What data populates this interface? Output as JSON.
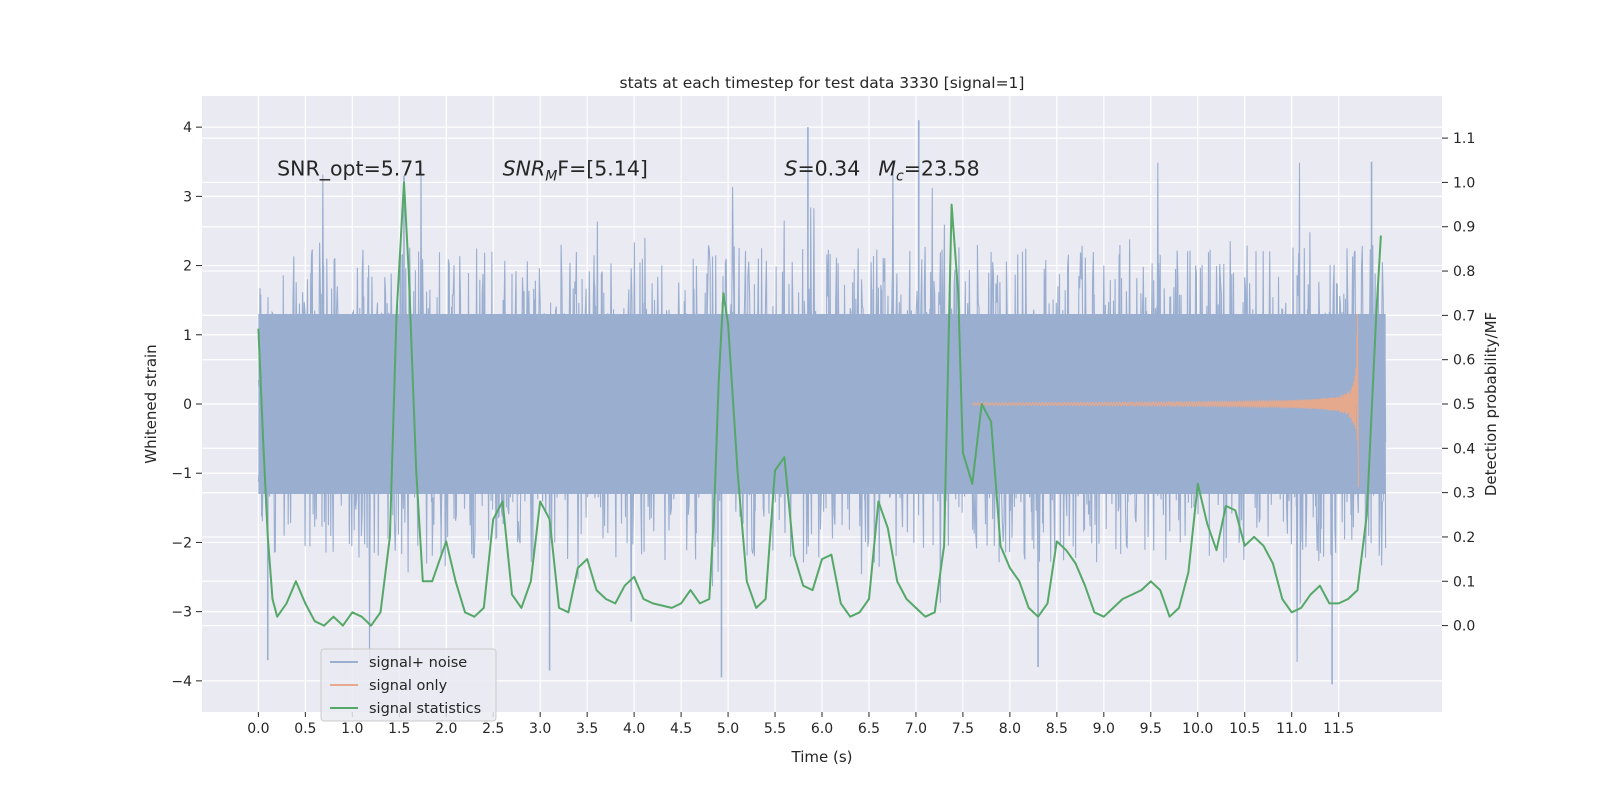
{
  "chart_data": {
    "type": "line",
    "title": "stats at each timestep for test data 3330 [signal=1]",
    "xlabel": "Time (s)",
    "ylabel": "Whitened strain",
    "y2label": "Detection probability/MF",
    "xlim": [
      -0.6,
      12.6
    ],
    "ylim": [
      -4.45,
      4.45
    ],
    "y2lim": [
      -0.195,
      1.195
    ],
    "x_ticks": [
      0.0,
      0.5,
      1.0,
      1.5,
      2.0,
      2.5,
      3.0,
      3.5,
      4.0,
      4.5,
      5.0,
      5.5,
      6.0,
      6.5,
      7.0,
      7.5,
      8.0,
      8.5,
      9.0,
      9.5,
      10.0,
      10.5,
      11.0,
      11.5
    ],
    "x_tick_labels": [
      "0.0",
      "0.5",
      "1.0",
      "1.5",
      "2.0",
      "2.5",
      "3.0",
      "3.5",
      "4.0",
      "4.5",
      "5.0",
      "5.5",
      "6.0",
      "6.5",
      "7.0",
      "7.5",
      "8.0",
      "8.5",
      "9.0",
      "9.5",
      "10.0",
      "10.5",
      "11.0",
      "11.5"
    ],
    "y_ticks": [
      -4,
      -3,
      -2,
      -1,
      0,
      1,
      2,
      3,
      4
    ],
    "y_tick_labels": [
      "−4",
      "−3",
      "−2",
      "−1",
      "0",
      "1",
      "2",
      "3",
      "4"
    ],
    "y2_ticks": [
      0.0,
      0.1,
      0.2,
      0.3,
      0.4,
      0.5,
      0.6,
      0.7,
      0.8,
      0.9,
      1.0,
      1.1
    ],
    "y2_tick_labels": [
      "0.0",
      "0.1",
      "0.2",
      "0.3",
      "0.4",
      "0.5",
      "0.6",
      "0.7",
      "0.8",
      "0.9",
      "1.0",
      "1.1"
    ],
    "grid": true,
    "legend_position": "lower-left",
    "annotations": [
      {
        "id": "snr_opt",
        "text": "SNR_opt=5.71",
        "x": 0.2,
        "y": 3.3
      },
      {
        "id": "snr_mf",
        "base": "SNR",
        "sub": "M",
        "rest": "F=[5.14]",
        "x": 2.6,
        "y": 3.3
      },
      {
        "id": "s_val",
        "base": "S",
        "rest": "=0.34",
        "x": 5.6,
        "y": 3.3
      },
      {
        "id": "mc_val",
        "base": "M",
        "sub": "c",
        "rest": "=23.58",
        "x": 6.6,
        "y": 3.3
      }
    ],
    "series": [
      {
        "name": "signal+ noise",
        "color": "#9aaed0",
        "axis": "left",
        "t_range": [
          0.0,
          12.0
        ],
        "envelope_min": -2.4,
        "envelope_max": 2.5,
        "extreme_min": -4.05,
        "extreme_max": 4.1,
        "peak_points": [
          [
            1.55,
            3.3
          ],
          [
            5.85,
            4.0
          ],
          [
            7.03,
            4.1
          ],
          [
            11.43,
            -4.05
          ],
          [
            4.93,
            -3.95
          ],
          [
            3.1,
            -3.85
          ],
          [
            0.1,
            -3.7
          ],
          [
            11.85,
            3.5
          ],
          [
            8.3,
            -3.8
          ]
        ]
      },
      {
        "name": "signal only",
        "color": "#e5a98d",
        "axis": "left",
        "t_start": 7.6,
        "t_merger": 11.7,
        "peak_amplitude": 1.3,
        "trough_amplitude": -1.2
      },
      {
        "name": "signal statistics",
        "color": "#55a868",
        "axis": "right",
        "x": [
          0.0,
          0.05,
          0.1,
          0.15,
          0.2,
          0.3,
          0.4,
          0.5,
          0.6,
          0.7,
          0.8,
          0.9,
          1.0,
          1.1,
          1.2,
          1.3,
          1.4,
          1.47,
          1.55,
          1.6,
          1.68,
          1.75,
          1.85,
          1.95,
          2.0,
          2.1,
          2.2,
          2.3,
          2.4,
          2.5,
          2.6,
          2.7,
          2.8,
          2.9,
          3.0,
          3.1,
          3.2,
          3.3,
          3.4,
          3.5,
          3.6,
          3.7,
          3.8,
          3.9,
          4.0,
          4.1,
          4.2,
          4.4,
          4.5,
          4.6,
          4.7,
          4.8,
          4.85,
          4.9,
          4.95,
          5.0,
          5.1,
          5.2,
          5.3,
          5.4,
          5.5,
          5.6,
          5.7,
          5.8,
          5.9,
          6.0,
          6.1,
          6.2,
          6.3,
          6.4,
          6.5,
          6.6,
          6.7,
          6.8,
          6.9,
          7.0,
          7.1,
          7.2,
          7.3,
          7.38,
          7.45,
          7.5,
          7.6,
          7.7,
          7.8,
          7.9,
          8.0,
          8.1,
          8.2,
          8.3,
          8.4,
          8.5,
          8.6,
          8.7,
          8.8,
          8.9,
          9.0,
          9.1,
          9.2,
          9.3,
          9.4,
          9.5,
          9.6,
          9.7,
          9.8,
          9.9,
          10.0,
          10.1,
          10.2,
          10.3,
          10.4,
          10.5,
          10.6,
          10.7,
          10.8,
          10.9,
          11.0,
          11.1,
          11.2,
          11.3,
          11.4,
          11.5,
          11.6,
          11.7,
          11.8,
          11.9,
          11.95
        ],
        "values": [
          0.67,
          0.42,
          0.2,
          0.06,
          0.02,
          0.05,
          0.1,
          0.05,
          0.01,
          0.0,
          0.02,
          0.0,
          0.03,
          0.02,
          0.0,
          0.03,
          0.2,
          0.7,
          1.0,
          0.8,
          0.35,
          0.1,
          0.1,
          0.16,
          0.19,
          0.1,
          0.03,
          0.02,
          0.04,
          0.24,
          0.28,
          0.07,
          0.04,
          0.1,
          0.28,
          0.24,
          0.04,
          0.03,
          0.13,
          0.15,
          0.08,
          0.06,
          0.05,
          0.09,
          0.11,
          0.06,
          0.05,
          0.04,
          0.05,
          0.08,
          0.05,
          0.06,
          0.25,
          0.55,
          0.75,
          0.68,
          0.35,
          0.1,
          0.04,
          0.06,
          0.35,
          0.38,
          0.16,
          0.09,
          0.08,
          0.15,
          0.16,
          0.05,
          0.02,
          0.03,
          0.06,
          0.28,
          0.22,
          0.1,
          0.06,
          0.04,
          0.02,
          0.03,
          0.18,
          0.95,
          0.75,
          0.39,
          0.32,
          0.5,
          0.46,
          0.18,
          0.13,
          0.1,
          0.04,
          0.02,
          0.05,
          0.19,
          0.17,
          0.14,
          0.09,
          0.03,
          0.02,
          0.04,
          0.06,
          0.07,
          0.08,
          0.1,
          0.08,
          0.02,
          0.04,
          0.12,
          0.32,
          0.23,
          0.17,
          0.27,
          0.26,
          0.18,
          0.2,
          0.18,
          0.14,
          0.06,
          0.03,
          0.04,
          0.07,
          0.09,
          0.05,
          0.05,
          0.06,
          0.08,
          0.25,
          0.7,
          0.88
        ]
      }
    ]
  }
}
